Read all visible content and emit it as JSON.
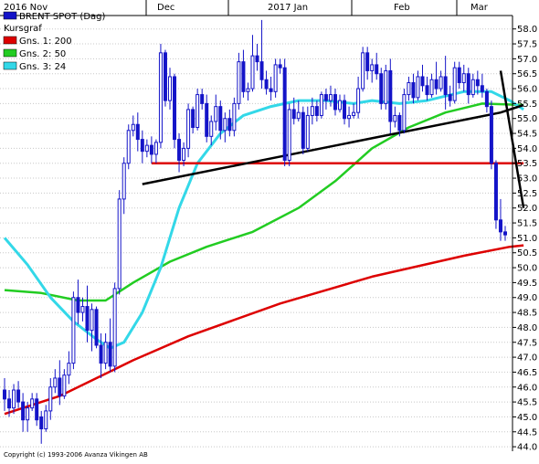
{
  "chart_data": {
    "type": "candlestick",
    "title": "BRENT SPOT (Dag)",
    "price_series_name": "Kursgraf",
    "x_axis_top_labels": [
      "2016 Nov",
      "Dec",
      "2017 Jan",
      "Feb",
      "Mar"
    ],
    "y_ticks": [
      44.0,
      44.5,
      45.0,
      45.5,
      46.0,
      46.5,
      47.0,
      47.5,
      48.0,
      48.5,
      49.0,
      49.5,
      50.0,
      50.5,
      51.0,
      51.5,
      52.0,
      52.5,
      53.0,
      53.5,
      54.0,
      54.5,
      55.0,
      55.5,
      56.0,
      56.5,
      57.0,
      57.5,
      58.0
    ],
    "ylim": [
      43.85,
      58.45
    ],
    "grid": true,
    "legend": [
      {
        "label": "BRENT SPOT (Dag)",
        "color": "#1414c8"
      },
      {
        "label": "Kursgraf",
        "color": "#000000"
      },
      {
        "label": "Gns. 1: 200",
        "color": "#dd0000"
      },
      {
        "label": "Gns. 2: 50",
        "color": "#22cc22"
      },
      {
        "label": "Gns. 3: 24",
        "color": "#33d8e8"
      }
    ],
    "legend_position": "top-left",
    "footer": "Copyright (c) 1993-2006 Avanza Vikingen AB",
    "candles": [
      [
        45.9,
        46.3,
        45.2,
        45.6
      ],
      [
        45.6,
        45.9,
        45.0,
        45.3
      ],
      [
        45.3,
        46.1,
        45.1,
        45.9
      ],
      [
        45.9,
        46.2,
        45.3,
        45.5
      ],
      [
        45.5,
        45.8,
        44.5,
        44.9
      ],
      [
        44.9,
        45.5,
        44.5,
        45.3
      ],
      [
        45.3,
        45.8,
        45.2,
        45.6
      ],
      [
        45.6,
        45.8,
        44.7,
        44.9
      ],
      [
        45.0,
        45.2,
        44.1,
        44.6
      ],
      [
        44.6,
        45.4,
        44.5,
        45.2
      ],
      [
        45.2,
        46.3,
        44.9,
        46.0
      ],
      [
        46.0,
        46.6,
        45.8,
        46.3
      ],
      [
        46.3,
        46.9,
        45.4,
        45.7
      ],
      [
        45.7,
        46.6,
        45.6,
        46.4
      ],
      [
        46.4,
        47.2,
        46.1,
        46.8
      ],
      [
        46.8,
        49.2,
        46.6,
        49.0
      ],
      [
        49.0,
        49.6,
        48.1,
        48.5
      ],
      [
        48.5,
        49.0,
        48.2,
        48.7
      ],
      [
        48.7,
        49.4,
        47.5,
        47.9
      ],
      [
        47.9,
        48.8,
        47.2,
        48.6
      ],
      [
        48.6,
        48.7,
        47.3,
        47.4
      ],
      [
        47.4,
        47.8,
        46.3,
        46.8
      ],
      [
        46.8,
        47.8,
        46.6,
        47.5
      ],
      [
        47.5,
        48.3,
        46.5,
        46.7
      ],
      [
        46.7,
        49.5,
        46.5,
        49.3
      ],
      [
        49.3,
        52.6,
        49.1,
        52.3
      ],
      [
        52.3,
        53.7,
        51.8,
        53.5
      ],
      [
        53.5,
        54.8,
        53.3,
        54.6
      ],
      [
        54.6,
        55.1,
        54.4,
        54.8
      ],
      [
        54.8,
        55.2,
        53.9,
        54.3
      ],
      [
        54.3,
        54.6,
        53.5,
        53.9
      ],
      [
        53.9,
        54.3,
        53.7,
        54.1
      ],
      [
        54.1,
        54.4,
        53.5,
        53.8
      ],
      [
        53.8,
        54.3,
        53.5,
        54.2
      ],
      [
        54.2,
        57.5,
        54.0,
        57.2
      ],
      [
        57.2,
        57.3,
        55.4,
        55.6
      ],
      [
        55.6,
        56.7,
        55.3,
        56.4
      ],
      [
        56.4,
        56.5,
        54.0,
        54.3
      ],
      [
        54.3,
        54.5,
        53.2,
        53.6
      ],
      [
        53.6,
        54.2,
        53.4,
        54.0
      ],
      [
        54.0,
        55.5,
        53.7,
        55.3
      ],
      [
        55.3,
        55.4,
        54.5,
        54.7
      ],
      [
        54.7,
        56.0,
        54.6,
        55.8
      ],
      [
        55.8,
        56.0,
        55.3,
        55.5
      ],
      [
        55.5,
        55.8,
        54.2,
        54.4
      ],
      [
        54.4,
        55.1,
        54.1,
        54.9
      ],
      [
        54.9,
        55.8,
        54.6,
        55.4
      ],
      [
        55.4,
        55.6,
        54.3,
        54.6
      ],
      [
        54.6,
        55.2,
        54.2,
        55.0
      ],
      [
        55.0,
        55.3,
        54.4,
        54.6
      ],
      [
        54.6,
        55.7,
        54.4,
        55.5
      ],
      [
        55.5,
        57.2,
        55.3,
        56.9
      ],
      [
        56.9,
        57.3,
        55.7,
        55.9
      ],
      [
        55.9,
        56.2,
        55.6,
        56.0
      ],
      [
        56.0,
        57.8,
        55.9,
        57.1
      ],
      [
        57.1,
        57.5,
        56.6,
        56.9
      ],
      [
        56.9,
        58.3,
        56.0,
        56.3
      ],
      [
        56.3,
        56.6,
        55.8,
        56.0
      ],
      [
        56.0,
        56.4,
        55.6,
        55.9
      ],
      [
        55.9,
        57.0,
        55.7,
        56.8
      ],
      [
        56.8,
        57.0,
        56.5,
        56.7
      ],
      [
        56.7,
        57.0,
        53.4,
        53.6
      ],
      [
        53.6,
        55.5,
        53.4,
        55.3
      ],
      [
        55.3,
        55.7,
        54.8,
        55.0
      ],
      [
        55.0,
        55.6,
        54.9,
        55.2
      ],
      [
        55.2,
        55.4,
        53.8,
        54.0
      ],
      [
        54.0,
        55.4,
        53.9,
        55.1
      ],
      [
        55.1,
        55.7,
        54.8,
        55.4
      ],
      [
        55.4,
        55.6,
        54.9,
        55.1
      ],
      [
        55.1,
        55.9,
        55.0,
        55.8
      ],
      [
        55.8,
        56.0,
        55.3,
        55.6
      ],
      [
        55.6,
        56.1,
        55.4,
        55.8
      ],
      [
        55.8,
        56.0,
        55.1,
        55.3
      ],
      [
        55.3,
        55.8,
        55.2,
        55.6
      ],
      [
        55.6,
        55.8,
        54.8,
        55.0
      ],
      [
        55.0,
        55.4,
        54.7,
        55.1
      ],
      [
        55.1,
        55.5,
        55.0,
        55.2
      ],
      [
        55.2,
        56.4,
        55.0,
        56.0
      ],
      [
        56.0,
        57.4,
        55.9,
        57.2
      ],
      [
        57.2,
        57.4,
        56.3,
        56.6
      ],
      [
        56.6,
        57.0,
        56.2,
        56.8
      ],
      [
        56.8,
        57.2,
        56.3,
        56.5
      ],
      [
        56.5,
        56.7,
        55.3,
        55.5
      ],
      [
        55.5,
        56.8,
        55.3,
        56.6
      ],
      [
        56.6,
        57.0,
        54.5,
        54.9
      ],
      [
        54.9,
        55.4,
        54.7,
        55.1
      ],
      [
        55.1,
        55.2,
        54.4,
        54.6
      ],
      [
        54.6,
        56.0,
        54.5,
        55.8
      ],
      [
        55.8,
        56.4,
        55.6,
        56.2
      ],
      [
        56.2,
        56.5,
        55.5,
        55.7
      ],
      [
        55.7,
        56.6,
        55.6,
        56.4
      ],
      [
        56.4,
        56.8,
        55.9,
        56.1
      ],
      [
        56.1,
        56.4,
        55.6,
        55.8
      ],
      [
        55.8,
        56.5,
        55.7,
        56.3
      ],
      [
        56.3,
        56.9,
        55.8,
        56.0
      ],
      [
        56.0,
        56.6,
        55.9,
        56.4
      ],
      [
        56.4,
        57.1,
        55.3,
        55.8
      ],
      [
        55.8,
        56.1,
        55.4,
        55.6
      ],
      [
        55.6,
        56.9,
        55.5,
        56.7
      ],
      [
        56.7,
        56.9,
        56.0,
        56.2
      ],
      [
        56.2,
        56.8,
        55.9,
        56.5
      ],
      [
        56.5,
        56.7,
        55.5,
        55.8
      ],
      [
        55.8,
        56.5,
        55.7,
        56.3
      ],
      [
        56.3,
        56.6,
        55.8,
        56.1
      ],
      [
        56.1,
        56.5,
        55.7,
        55.9
      ],
      [
        55.9,
        56.0,
        55.2,
        55.4
      ],
      [
        55.4,
        55.6,
        53.3,
        53.5
      ],
      [
        53.5,
        53.6,
        51.3,
        51.6
      ],
      [
        51.6,
        52.3,
        50.9,
        51.2
      ],
      [
        51.2,
        51.4,
        50.9,
        51.1
      ]
    ],
    "moving_averages": [
      {
        "name": "Gns. 1: 200",
        "color": "#dd0000",
        "points": [
          [
            0,
            45.1
          ],
          [
            12,
            45.7
          ],
          [
            20,
            46.3
          ],
          [
            28,
            46.9
          ],
          [
            40,
            47.7
          ],
          [
            60,
            48.8
          ],
          [
            80,
            49.7
          ],
          [
            100,
            50.4
          ],
          [
            110,
            50.7
          ],
          [
            113,
            50.75
          ]
        ]
      },
      {
        "name": "Gns. 2: 50",
        "color": "#22cc22",
        "points": [
          [
            0,
            49.25
          ],
          [
            8,
            49.15
          ],
          [
            16,
            48.9
          ],
          [
            22,
            48.9
          ],
          [
            28,
            49.5
          ],
          [
            36,
            50.2
          ],
          [
            44,
            50.7
          ],
          [
            54,
            51.2
          ],
          [
            64,
            52.0
          ],
          [
            72,
            52.9
          ],
          [
            80,
            54.0
          ],
          [
            88,
            54.7
          ],
          [
            96,
            55.2
          ],
          [
            104,
            55.5
          ],
          [
            113,
            55.45
          ]
        ]
      },
      {
        "name": "Gns. 3: 24",
        "color": "#33d8e8",
        "points": [
          [
            0,
            51.0
          ],
          [
            5,
            50.1
          ],
          [
            10,
            49.0
          ],
          [
            15,
            48.2
          ],
          [
            20,
            47.6
          ],
          [
            23,
            47.3
          ],
          [
            26,
            47.5
          ],
          [
            30,
            48.5
          ],
          [
            34,
            50.0
          ],
          [
            38,
            52.0
          ],
          [
            42,
            53.5
          ],
          [
            47,
            54.5
          ],
          [
            52,
            55.1
          ],
          [
            58,
            55.4
          ],
          [
            64,
            55.6
          ],
          [
            70,
            55.6
          ],
          [
            76,
            55.5
          ],
          [
            80,
            55.6
          ],
          [
            86,
            55.5
          ],
          [
            92,
            55.6
          ],
          [
            100,
            55.9
          ],
          [
            106,
            55.9
          ],
          [
            110,
            55.6
          ],
          [
            113,
            55.3
          ]
        ]
      }
    ],
    "trendlines": [
      {
        "name": "support-line",
        "color": "#dd0000",
        "points": [
          [
            32,
            53.5
          ],
          [
            113,
            53.5
          ]
        ]
      },
      {
        "name": "rising-trendline",
        "color": "#000000",
        "points": [
          [
            30,
            52.8
          ],
          [
            108,
            55.2
          ],
          [
            113,
            55.45
          ]
        ]
      },
      {
        "name": "falling-trendline",
        "color": "#000000",
        "points": [
          [
            108,
            56.6
          ],
          [
            113,
            52.0
          ]
        ]
      }
    ]
  }
}
